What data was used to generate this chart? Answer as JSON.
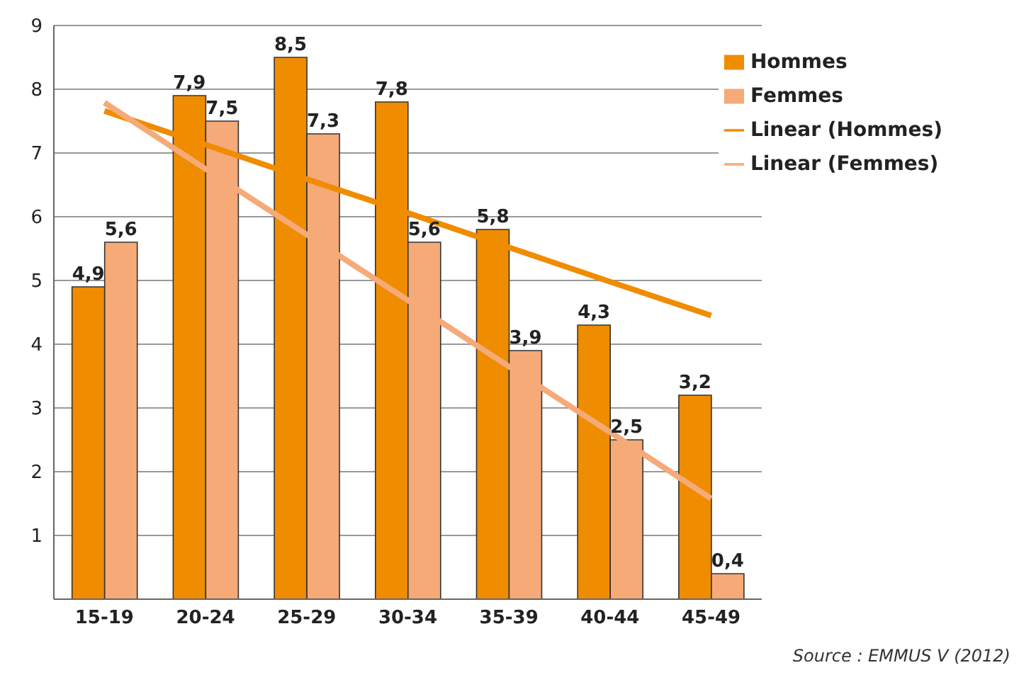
{
  "chart_data": {
    "type": "bar",
    "categories": [
      "15-19",
      "20-24",
      "25-29",
      "30-34",
      "35-39",
      "40-44",
      "45-49"
    ],
    "series": [
      {
        "name": "Hommes",
        "color": "#f08c00",
        "values": [
          4.9,
          7.9,
          8.5,
          7.8,
          5.8,
          4.3,
          3.2
        ],
        "value_labels": [
          "4,9",
          "7,9",
          "8,5",
          "7,8",
          "5,8",
          "4,3",
          "3,2"
        ]
      },
      {
        "name": "Femmes",
        "color": "#f5aa78",
        "values": [
          5.6,
          7.5,
          7.3,
          5.6,
          3.9,
          2.5,
          0.4
        ],
        "value_labels": [
          "5,6",
          "7,5",
          "7,3",
          "5,6",
          "3,9",
          "2,5",
          "0,4"
        ]
      },
      {
        "name": "Linear (Hommes)",
        "type": "line",
        "color": "#f08c00",
        "values": [
          7.66,
          7.13,
          6.59,
          6.06,
          5.52,
          4.98,
          4.45
        ]
      },
      {
        "name": "Linear (Femmes)",
        "type": "line",
        "color": "#f5aa78",
        "values": [
          7.79,
          6.75,
          5.72,
          4.69,
          3.65,
          2.62,
          1.58
        ]
      }
    ],
    "ylim": [
      0,
      9
    ],
    "yticks": [
      {
        "value": 0,
        "label": null
      },
      1,
      2,
      3,
      4,
      5,
      6,
      7,
      8,
      9
    ],
    "grid": "y",
    "legend": "top right",
    "marker": "none",
    "line_style": "solid",
    "annotations": [
      "Source : EMMUS V (2012)"
    ]
  }
}
